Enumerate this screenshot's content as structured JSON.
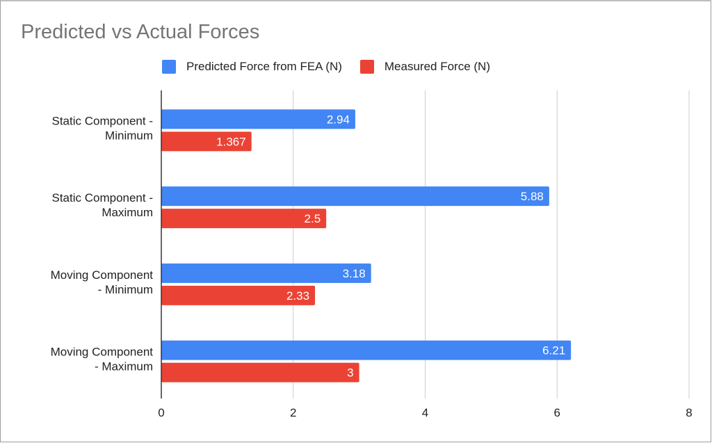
{
  "chart_data": {
    "type": "bar",
    "orientation": "horizontal",
    "title": "Predicted vs Actual Forces",
    "xlabel": "",
    "ylabel": "",
    "categories": [
      [
        "Static Component -",
        "Minimum"
      ],
      [
        "Static Component -",
        "Maximum"
      ],
      [
        "Moving Component",
        "- Minimum"
      ],
      [
        "Moving Component",
        "- Maximum"
      ]
    ],
    "series": [
      {
        "name": "Predicted Force from FEA (N)",
        "color": "#4285f4",
        "values": [
          2.94,
          5.88,
          3.18,
          6.21
        ],
        "labels": [
          "2.94",
          "5.88",
          "3.18",
          "6.21"
        ]
      },
      {
        "name": "Measured Force (N)",
        "color": "#ea4335",
        "values": [
          1.367,
          2.5,
          2.33,
          3
        ],
        "labels": [
          "1.367",
          "2.5",
          "2.33",
          "3"
        ]
      }
    ],
    "xlim": [
      0,
      8
    ],
    "xticks": [
      0,
      2,
      4,
      6,
      8
    ],
    "grid": true,
    "legend_position": "top"
  }
}
